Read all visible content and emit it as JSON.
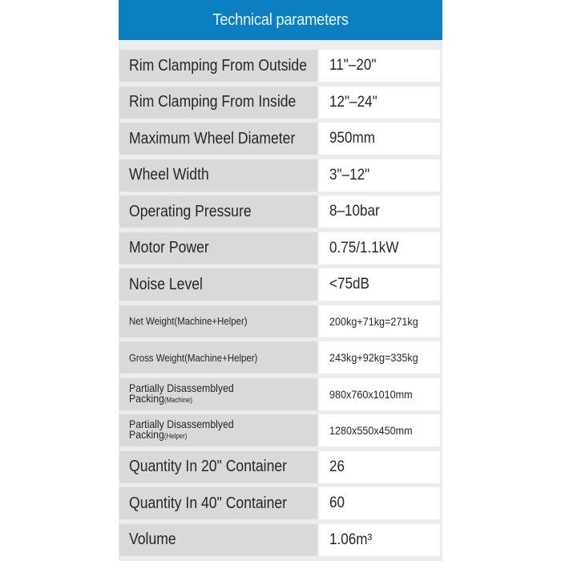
{
  "title": "Technical parameters",
  "colors": {
    "header": "#0b7fc2",
    "label_cell": "#d9d9d9",
    "value_cell": "#ffffff"
  },
  "rows": [
    {
      "label": "Rim Clamping From Outside",
      "value": "11\"–20\""
    },
    {
      "label": "Rim Clamping From Inside",
      "value": "12\"–24\""
    },
    {
      "label": "Maximum Wheel Diameter",
      "value": "950mm"
    },
    {
      "label": "Wheel Width",
      "value": "3\"–12\""
    },
    {
      "label": "Operating Pressure",
      "value": "8–10bar"
    },
    {
      "label": "Motor Power",
      "value": "0.75/1.1kW"
    },
    {
      "label": "Noise Level",
      "value": "<75dB"
    },
    {
      "label": "Net Weight(Machine+Helper)",
      "value": "200kg+71kg=271kg"
    },
    {
      "label": "Gross Weight(Machine+Helper)",
      "value": "243kg+92kg=335kg"
    },
    {
      "label": "Partially Disassemblyed",
      "label2": "Packing",
      "label_sub": "(Machine)",
      "value": "980x760x1010mm"
    },
    {
      "label": "Partially Disassemblyed",
      "label2": "Packing",
      "label_sub": "(Helper)",
      "value": "1280x550x450mm"
    },
    {
      "label": "Quantity In 20\" Container",
      "value": "26"
    },
    {
      "label": "Quantity In 40\" Container",
      "value": "60"
    },
    {
      "label": "Volume",
      "value": "1.06m³"
    }
  ]
}
